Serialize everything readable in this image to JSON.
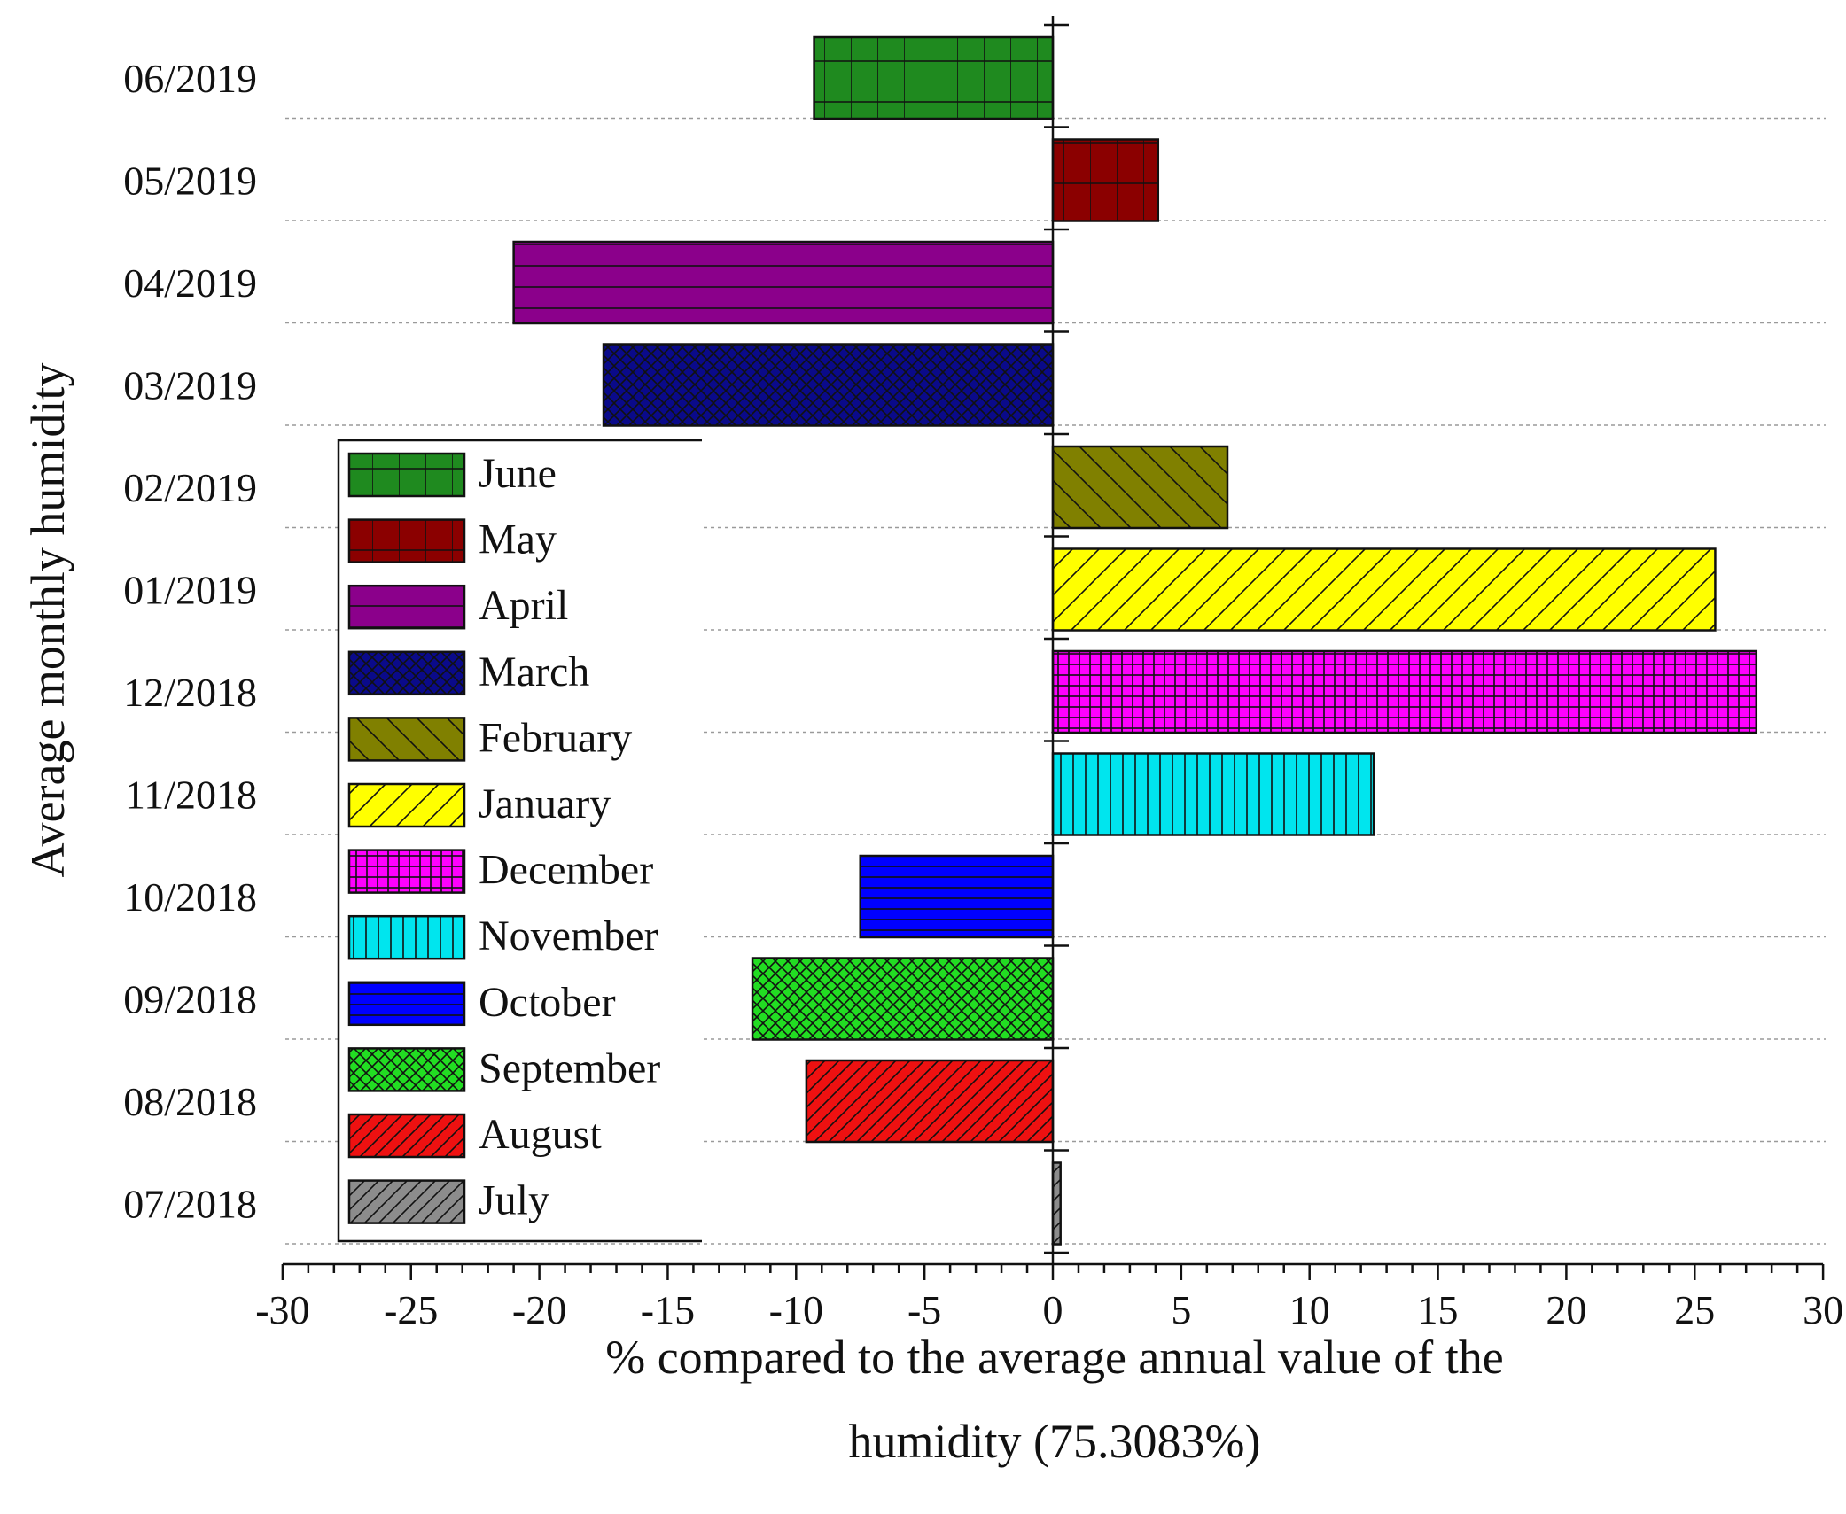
{
  "chart_data": {
    "type": "bar",
    "orientation": "horizontal",
    "categories": [
      "06/2019",
      "05/2019",
      "04/2019",
      "03/2019",
      "02/2019",
      "01/2019",
      "12/2018",
      "11/2018",
      "10/2018",
      "09/2018",
      "08/2018",
      "07/2018"
    ],
    "values": [
      -9.3,
      4.1,
      -21.0,
      -17.5,
      6.8,
      25.8,
      27.4,
      12.5,
      -7.5,
      -11.7,
      -9.6,
      0.3
    ],
    "series_names": [
      "June",
      "May",
      "April",
      "March",
      "February",
      "January",
      "December",
      "November",
      "October",
      "September",
      "August",
      "July"
    ],
    "colors": [
      "#1f8a1f",
      "#8b0000",
      "#8b008b",
      "#0a0a8a",
      "#808000",
      "#ffff00",
      "#ff00ff",
      "#00e5ee",
      "#0000ff",
      "#22dd22",
      "#ee1111",
      "#8c8c8c"
    ],
    "patterns": [
      "vgrid",
      "vgrid",
      "hline",
      "cross",
      "backdiag",
      "diag",
      "fine-grid",
      "vline",
      "hline-fine",
      "cross",
      "diag-fine",
      "diag-fine"
    ],
    "legend_order": [
      "June",
      "May",
      "April",
      "March",
      "February",
      "January",
      "December",
      "November",
      "October",
      "September",
      "August",
      "July"
    ],
    "xlim": [
      -30,
      30
    ],
    "xticks": [
      -30,
      -25,
      -20,
      -15,
      -10,
      -5,
      0,
      5,
      10,
      15,
      20,
      25,
      30
    ],
    "xlabel_line1": "% compared to the average annual value of the",
    "xlabel_line2": "humidity (75.3083%)",
    "ylabel": "Average monthly humidity",
    "legend_position": "left",
    "grid": "dotted horizontal"
  }
}
